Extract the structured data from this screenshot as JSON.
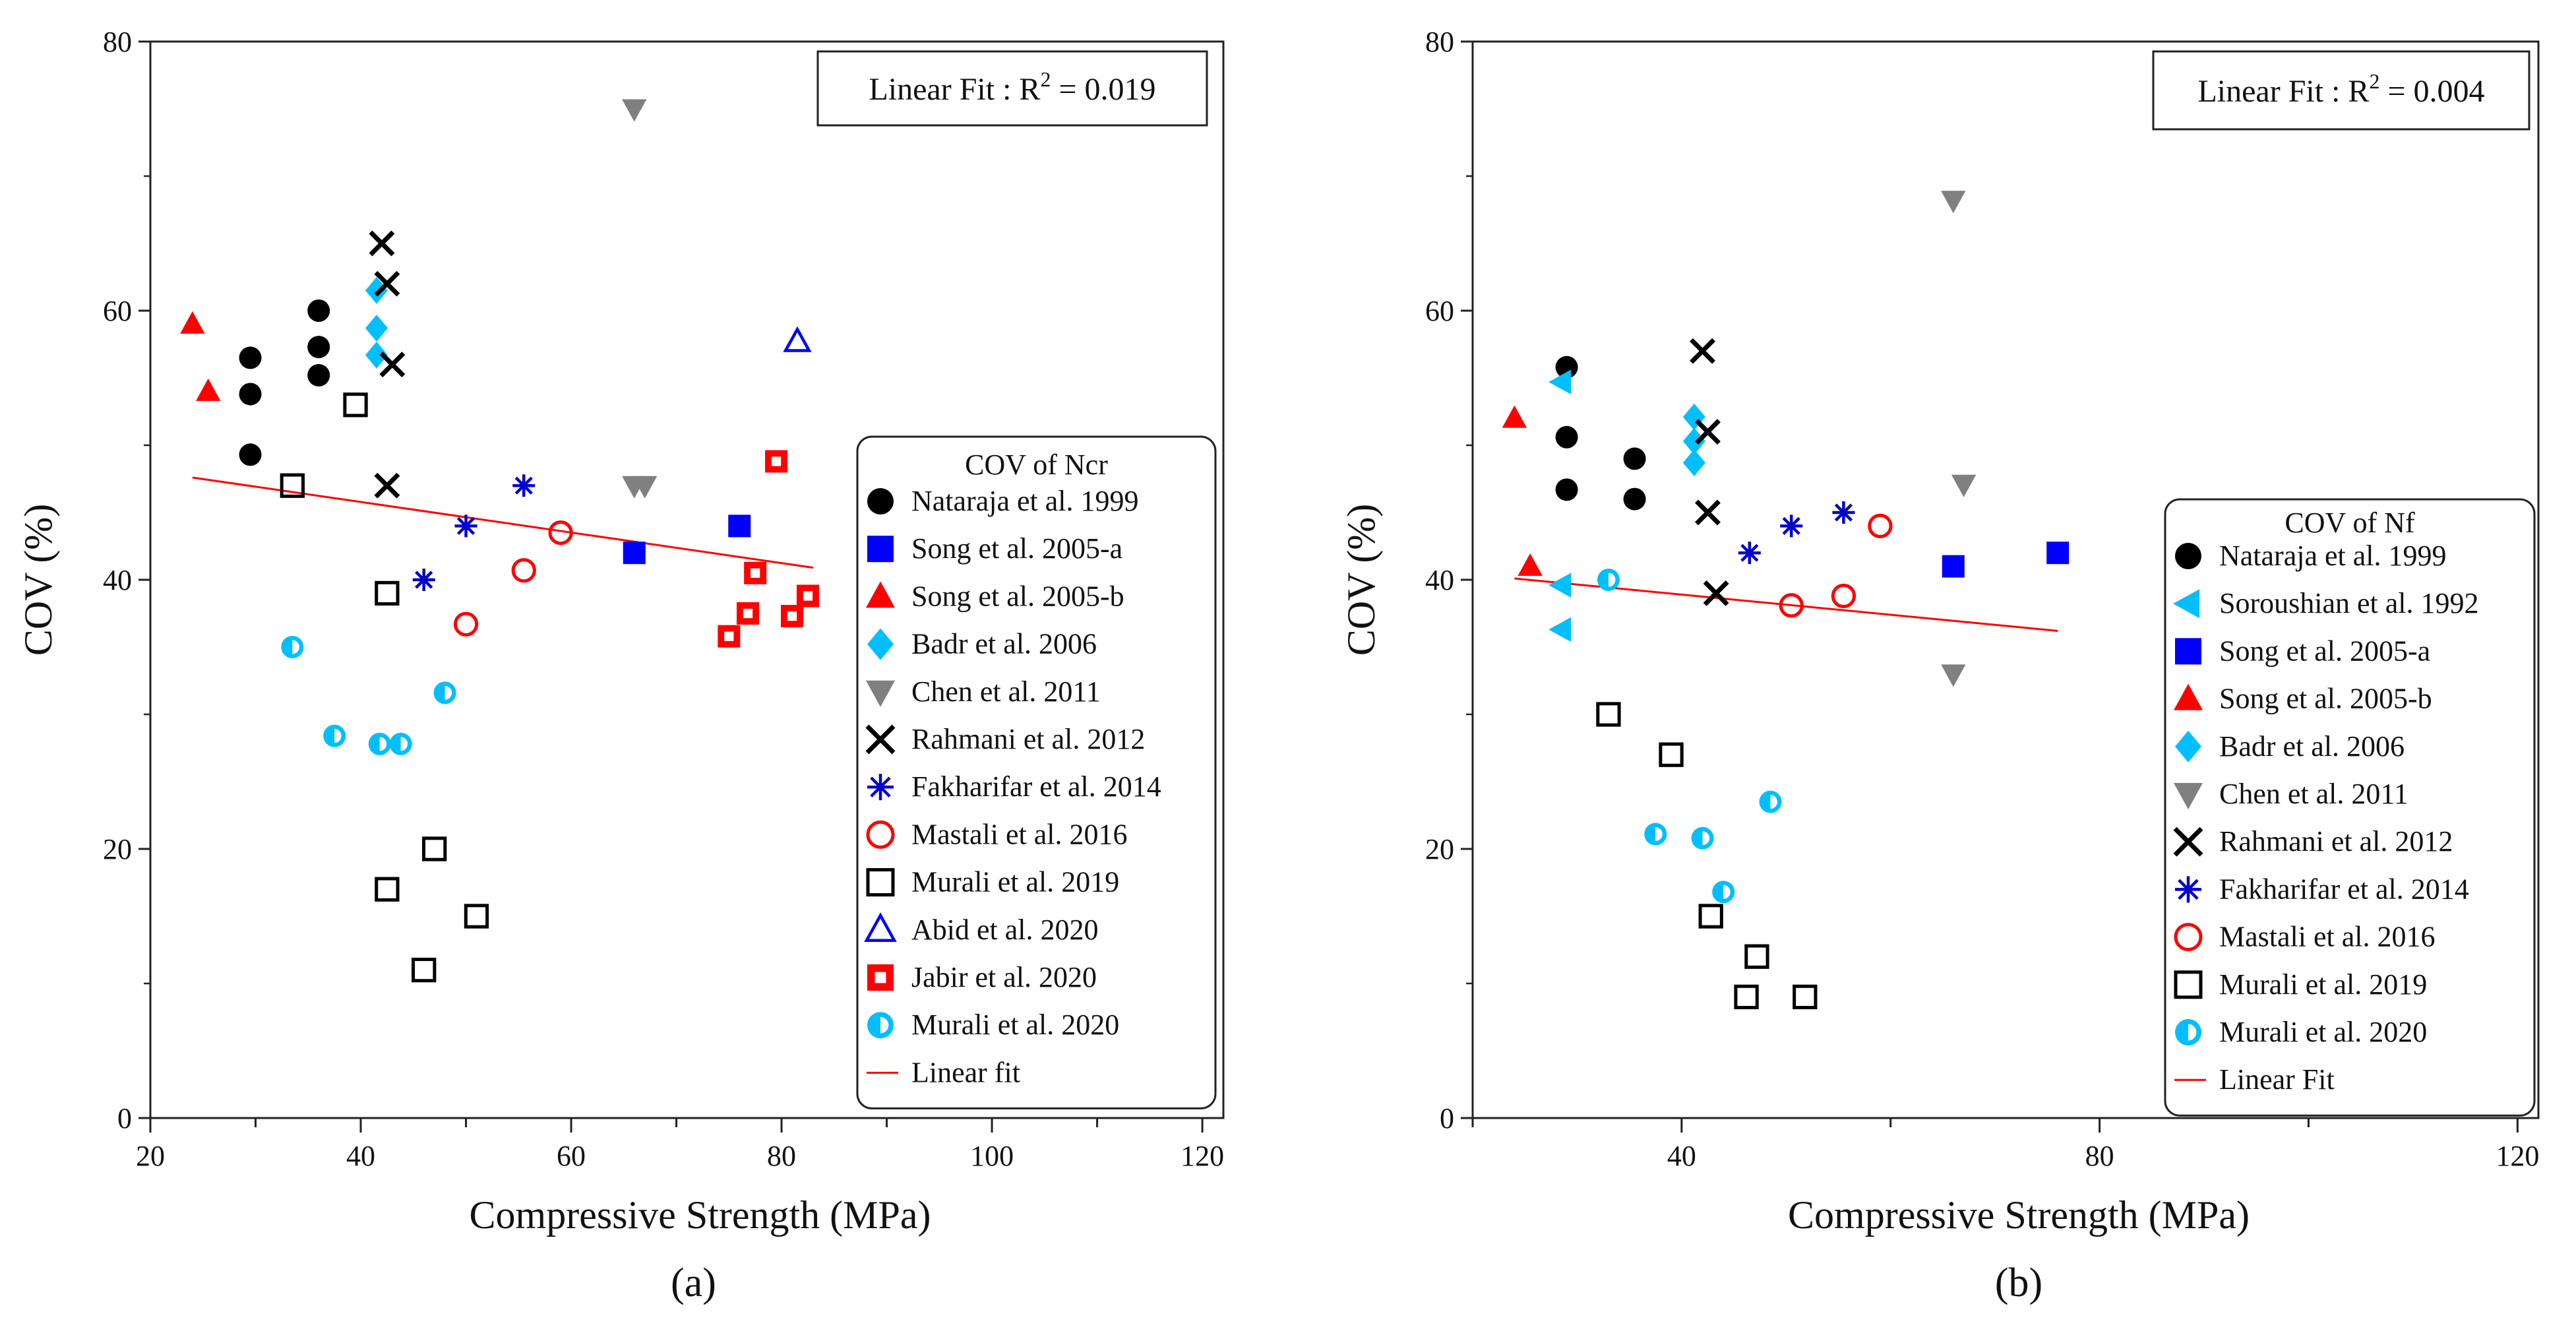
{
  "chart_data": [
    {
      "type": "scatter",
      "panel_label": "(a)",
      "xlabel": "Compressive Strength (MPa)",
      "ylabel": "COV (%)",
      "xlim": [
        20,
        122
      ],
      "ylim": [
        0,
        80
      ],
      "xticks": [
        20,
        40,
        60,
        80,
        100,
        120
      ],
      "yticks": [
        0,
        20,
        40,
        60,
        80
      ],
      "annotation": {
        "prefix": "Linear Fit : R",
        "sup": "2",
        "suffix": " = 0.019"
      },
      "legend": {
        "title": "COV of Ncr",
        "placement": "right"
      },
      "fit": {
        "name": "Linear fit",
        "color": "#ff0000",
        "x": [
          24,
          83
        ],
        "y": [
          47.6,
          40.9
        ]
      },
      "series": [
        {
          "name": "Nataraja et al. 1999",
          "marker": "circle",
          "color": "#000000",
          "points": [
            [
              29.5,
              56.5
            ],
            [
              29.5,
              53.8
            ],
            [
              29.5,
              49.3
            ],
            [
              36,
              60
            ],
            [
              36,
              57.3
            ],
            [
              36,
              55.2
            ]
          ]
        },
        {
          "name": "Song et al. 2005-a",
          "marker": "square",
          "color": "#0000ff",
          "points": [
            [
              66,
              42
            ],
            [
              76,
              44
            ]
          ]
        },
        {
          "name": "Song et al. 2005-b",
          "marker": "triangle",
          "color": "#ff0000",
          "points": [
            [
              24,
              59
            ],
            [
              25.5,
              54
            ]
          ]
        },
        {
          "name": "Badr et al. 2006",
          "marker": "diamond",
          "color": "#00bfff",
          "points": [
            [
              41.5,
              61.5
            ],
            [
              41.5,
              58.7
            ],
            [
              41.5,
              56.7
            ]
          ]
        },
        {
          "name": "Chen et al. 2011",
          "marker": "triangle-down",
          "color": "#808080",
          "points": [
            [
              66,
              75
            ],
            [
              66,
              47
            ],
            [
              67,
              47
            ]
          ]
        },
        {
          "name": "Rahmani et al. 2012",
          "marker": "x",
          "color": "#000000",
          "points": [
            [
              42,
              65
            ],
            [
              42.5,
              62
            ],
            [
              43,
              56
            ],
            [
              42.5,
              47
            ]
          ]
        },
        {
          "name": "Fakharifar et al. 2014",
          "marker": "asterisk",
          "color": "#0000cc",
          "points": [
            [
              55.5,
              47
            ],
            [
              50,
              44
            ],
            [
              46,
              40
            ]
          ]
        },
        {
          "name": "Mastali et al. 2016",
          "marker": "circle-open",
          "color": "#ff0000",
          "points": [
            [
              59,
              43.5
            ],
            [
              55.5,
              40.7
            ],
            [
              50,
              36.7
            ]
          ]
        },
        {
          "name": "Murali et al. 2019",
          "marker": "square-open",
          "color": "#000000",
          "points": [
            [
              39.5,
              53
            ],
            [
              33.5,
              47
            ],
            [
              42.5,
              39
            ],
            [
              47,
              20
            ],
            [
              42.5,
              17
            ],
            [
              51,
              15
            ],
            [
              46,
              11
            ]
          ]
        },
        {
          "name": "Abid et al. 2020",
          "marker": "triangle-open",
          "color": "#0000ff",
          "points": [
            [
              81.5,
              57.7
            ]
          ]
        },
        {
          "name": "Jabir et al. 2020",
          "marker": "square-dot",
          "color": "#ff0000",
          "points": [
            [
              79.5,
              48.8
            ],
            [
              77.5,
              40.5
            ],
            [
              76.8,
              37.5
            ],
            [
              75,
              35.8
            ],
            [
              81,
              37.3
            ],
            [
              82.5,
              38.8
            ]
          ]
        },
        {
          "name": "Murali et al. 2020",
          "marker": "circle-half",
          "color": "#00bfff",
          "points": [
            [
              33.5,
              35
            ],
            [
              37.5,
              28.4
            ],
            [
              41.8,
              27.8
            ],
            [
              43.8,
              27.8
            ],
            [
              48,
              31.6
            ]
          ]
        }
      ]
    },
    {
      "type": "scatter",
      "panel_label": "(b)",
      "xlabel": "Compressive Strength (MPa)",
      "ylabel": "COV (%)",
      "xlim": [
        20,
        122
      ],
      "ylim": [
        0,
        80
      ],
      "xticks": [
        40,
        80,
        120
      ],
      "yticks": [
        0,
        20,
        40,
        60,
        80
      ],
      "annotation": {
        "prefix": "Linear Fit : R",
        "sup": "2",
        "suffix": " = 0.004"
      },
      "legend": {
        "title": "COV of Nf",
        "placement": "right"
      },
      "fit": {
        "name": "Linear Fit",
        "color": "#ff0000",
        "x": [
          24,
          76
        ],
        "y": [
          40.1,
          36.2
        ]
      },
      "series": [
        {
          "name": "Nataraja et al. 1999",
          "marker": "circle",
          "color": "#000000",
          "points": [
            [
              29,
              55.8
            ],
            [
              29,
              50.6
            ],
            [
              29,
              46.7
            ],
            [
              35.5,
              49
            ],
            [
              35.5,
              46
            ]
          ]
        },
        {
          "name": "Soroushian et al. 1992",
          "marker": "triangle-left",
          "color": "#00bfff",
          "points": [
            [
              28.5,
              54.7
            ],
            [
              28.5,
              39.6
            ],
            [
              28.5,
              36.3
            ]
          ]
        },
        {
          "name": "Song et al. 2005-a",
          "marker": "square",
          "color": "#0000ff",
          "points": [
            [
              66,
              41
            ],
            [
              76,
              42
            ]
          ]
        },
        {
          "name": "Song et al. 2005-b",
          "marker": "triangle",
          "color": "#ff0000",
          "points": [
            [
              24,
              52
            ],
            [
              25.5,
              41
            ]
          ]
        },
        {
          "name": "Badr et al. 2006",
          "marker": "diamond",
          "color": "#00bfff",
          "points": [
            [
              41.2,
              52.1
            ],
            [
              41.2,
              50.3
            ],
            [
              41.2,
              48.7
            ]
          ]
        },
        {
          "name": "Chen et al. 2011",
          "marker": "triangle-down",
          "color": "#808080",
          "points": [
            [
              66,
              68.2
            ],
            [
              67,
              47.1
            ],
            [
              66,
              33
            ]
          ]
        },
        {
          "name": "Rahmani et al. 2012",
          "marker": "x",
          "color": "#000000",
          "points": [
            [
              42,
              57
            ],
            [
              42.5,
              51
            ],
            [
              42.5,
              45
            ],
            [
              43.3,
              39
            ]
          ]
        },
        {
          "name": "Fakharifar et al. 2014",
          "marker": "asterisk",
          "color": "#0000cc",
          "points": [
            [
              55.5,
              45
            ],
            [
              50.5,
              44
            ],
            [
              46.5,
              42
            ]
          ]
        },
        {
          "name": "Mastali et al. 2016",
          "marker": "circle-open",
          "color": "#ff0000",
          "points": [
            [
              59,
              44
            ],
            [
              55.5,
              38.8
            ],
            [
              50.5,
              38.1
            ]
          ]
        },
        {
          "name": "Murali et al. 2019",
          "marker": "square-open",
          "color": "#000000",
          "points": [
            [
              33,
              30
            ],
            [
              39,
              27
            ],
            [
              42.8,
              15
            ],
            [
              47.2,
              12
            ],
            [
              46.2,
              9
            ],
            [
              51.8,
              9
            ]
          ]
        },
        {
          "name": "Murali et al. 2020",
          "marker": "circle-half",
          "color": "#00bfff",
          "points": [
            [
              33,
              40
            ],
            [
              37.5,
              21.1
            ],
            [
              42,
              20.8
            ],
            [
              44,
              16.8
            ],
            [
              48.5,
              23.5
            ]
          ]
        }
      ]
    }
  ]
}
